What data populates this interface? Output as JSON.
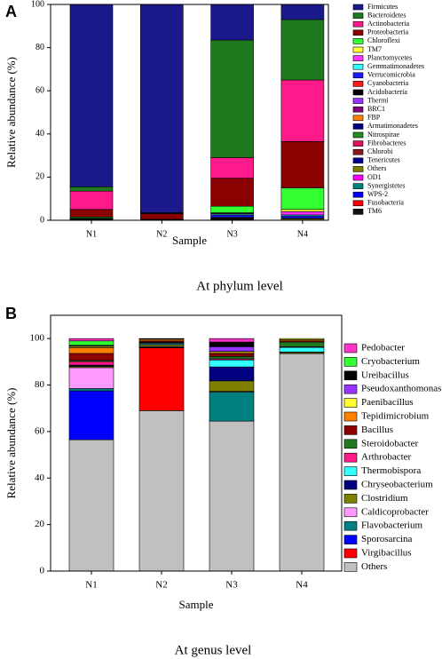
{
  "chart_data": [
    {
      "type": "stacked_bar",
      "panel_label": "A",
      "caption": "At phylum level",
      "x_label": "Sample",
      "y_label": "Relative abundance (%)",
      "categories": [
        "N1",
        "N2",
        "N3",
        "N4"
      ],
      "ylim": [
        0,
        100
      ],
      "yticks": [
        0,
        20,
        40,
        60,
        80,
        100
      ],
      "series": [
        {
          "name": "Firmicutes",
          "color": "#1a1a8c",
          "values": [
            84.5,
            96.5,
            16.5,
            7
          ]
        },
        {
          "name": "Bacteroidetes",
          "color": "#1f7a1f",
          "values": [
            2,
            0.2,
            54.5,
            28
          ]
        },
        {
          "name": "Actinobacteria",
          "color": "#ff1a8c",
          "values": [
            8.5,
            0.3,
            9.5,
            28.5
          ]
        },
        {
          "name": "Proteobacteria",
          "color": "#8b0000",
          "values": [
            3.5,
            2.5,
            13,
            21.5
          ]
        },
        {
          "name": "Chloroflexi",
          "color": "#33ff33",
          "values": [
            0.5,
            0.2,
            3,
            10
          ]
        },
        {
          "name": "TM7",
          "color": "#ffff33",
          "values": [
            0.1,
            0,
            0.3,
            1
          ]
        },
        {
          "name": "Planctomycetes",
          "color": "#ff33ff",
          "values": [
            0.1,
            0,
            0.3,
            1.5
          ]
        },
        {
          "name": "Gemmatimonadetes",
          "color": "#33ffff",
          "values": [
            0.1,
            0,
            0.5,
            0.5
          ]
        },
        {
          "name": "Verrucomicrobia",
          "color": "#1a1aff",
          "values": [
            0.2,
            0,
            1,
            1
          ]
        },
        {
          "name": "Cyanobacteria",
          "color": "#ff1a1a",
          "values": [
            0.1,
            0,
            0.2,
            0.3
          ]
        },
        {
          "name": "Acidobacteria",
          "color": "#000000",
          "values": [
            0.1,
            0,
            0.2,
            0
          ]
        },
        {
          "name": "Thermi",
          "color": "#9933ff",
          "values": [
            0,
            0,
            0.3,
            0
          ]
        },
        {
          "name": "BRC1",
          "color": "#800080",
          "values": [
            0,
            0,
            0.2,
            0
          ]
        },
        {
          "name": "FBP",
          "color": "#ff8000",
          "values": [
            0,
            0,
            0.2,
            0
          ]
        },
        {
          "name": "Armatimonadetes",
          "color": "#000080",
          "values": [
            0,
            0,
            0,
            0
          ]
        },
        {
          "name": "Nitrospirae",
          "color": "#228b22",
          "values": [
            0,
            0,
            0,
            0
          ]
        },
        {
          "name": "Fibrobacteres",
          "color": "#e0115f",
          "values": [
            0,
            0,
            0,
            0
          ]
        },
        {
          "name": "Chlorobi",
          "color": "#8b1a1a",
          "values": [
            0,
            0,
            0,
            0
          ]
        },
        {
          "name": "Tenericutes",
          "color": "#00008b",
          "values": [
            0,
            0,
            0,
            0
          ]
        },
        {
          "name": "Others",
          "color": "#808000",
          "values": [
            0.3,
            0.3,
            0.3,
            0.7
          ]
        },
        {
          "name": "OD1",
          "color": "#ff00ff",
          "values": [
            0,
            0,
            0,
            0
          ]
        },
        {
          "name": "Synergistetes",
          "color": "#008080",
          "values": [
            0,
            0,
            0,
            0
          ]
        },
        {
          "name": "WPS-2",
          "color": "#0000ff",
          "values": [
            0,
            0,
            0,
            0
          ]
        },
        {
          "name": "Fusobacteria",
          "color": "#ff0000",
          "values": [
            0,
            0,
            0,
            0
          ]
        },
        {
          "name": "TM6",
          "color": "#111111",
          "values": [
            0,
            0,
            0,
            0
          ]
        }
      ]
    },
    {
      "type": "stacked_bar",
      "panel_label": "B",
      "caption": "At genus level",
      "x_label": "Sample",
      "y_label": "Relative abundance (%)",
      "categories": [
        "N1",
        "N2",
        "N3",
        "N4"
      ],
      "ylim": [
        0,
        110
      ],
      "yticks": [
        0,
        20,
        40,
        60,
        80,
        100
      ],
      "series": [
        {
          "name": "Pedobacter",
          "color": "#ff33cc",
          "values": [
            1,
            0,
            1.5,
            0
          ]
        },
        {
          "name": "Cryobacterium",
          "color": "#33ff33",
          "values": [
            1.9,
            0,
            0,
            0
          ]
        },
        {
          "name": "Ureibacillus",
          "color": "#000000",
          "values": [
            0.2,
            0.1,
            2,
            0
          ]
        },
        {
          "name": "Pseudoxanthomonas",
          "color": "#9933ff",
          "values": [
            0.3,
            0.1,
            2,
            0
          ]
        },
        {
          "name": "Paenibacillus",
          "color": "#ffff33",
          "values": [
            0.5,
            0.1,
            0.5,
            0.5
          ]
        },
        {
          "name": "Tepidimicrobium",
          "color": "#ff8000",
          "values": [
            2.5,
            0.7,
            0.5,
            0.5
          ]
        },
        {
          "name": "Bacillus",
          "color": "#8b0000",
          "values": [
            3,
            0.5,
            1.2,
            0.5
          ]
        },
        {
          "name": "Steroidobacter",
          "color": "#1f7a1f",
          "values": [
            0.5,
            0.3,
            1,
            2
          ]
        },
        {
          "name": "Arthrobacter",
          "color": "#ff1a8c",
          "values": [
            1.5,
            0.2,
            0.5,
            0.3
          ]
        },
        {
          "name": "Thermobispora",
          "color": "#33ffff",
          "values": [
            0.3,
            0.5,
            3,
            2
          ]
        },
        {
          "name": "Chryseobacterium",
          "color": "#000080",
          "values": [
            0.3,
            0.2,
            6,
            0.2
          ]
        },
        {
          "name": "Clostridium",
          "color": "#808000",
          "values": [
            0.5,
            0.8,
            4.5,
            0.5
          ]
        },
        {
          "name": "Caldicoprobacter",
          "color": "#ff99ff",
          "values": [
            9,
            0.3,
            0.3,
            0
          ]
        },
        {
          "name": "Flavobacterium",
          "color": "#008080",
          "values": [
            1,
            0.2,
            12.5,
            0
          ]
        },
        {
          "name": "Sporosarcina",
          "color": "#0000ff",
          "values": [
            21,
            0,
            0,
            0
          ]
        },
        {
          "name": "Virgibacillus",
          "color": "#ff0000",
          "values": [
            0,
            27,
            0,
            0
          ]
        },
        {
          "name": "Others",
          "color": "#c0c0c0",
          "values": [
            56.5,
            69,
            64.5,
            93.5
          ]
        }
      ]
    }
  ]
}
